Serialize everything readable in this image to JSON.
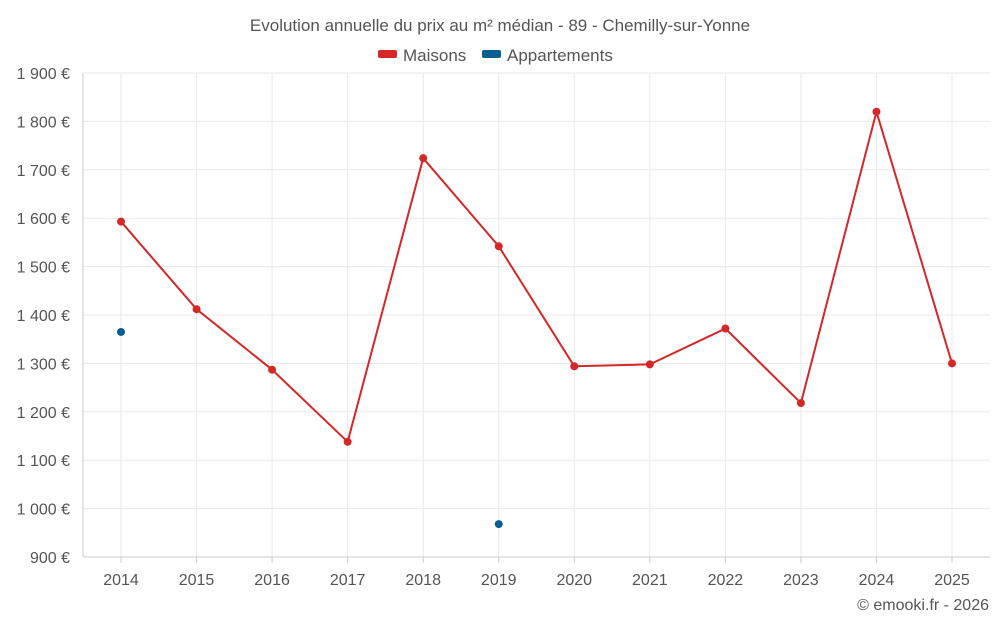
{
  "chart_data": {
    "type": "line",
    "title": "Evolution annuelle du prix au m² médian - 89 - Chemilly-sur-Yonne",
    "categories": [
      "2014",
      "2015",
      "2016",
      "2017",
      "2018",
      "2019",
      "2020",
      "2021",
      "2022",
      "2023",
      "2024",
      "2025"
    ],
    "ylim": [
      900,
      1900
    ],
    "yticks": [
      900,
      1000,
      1100,
      1200,
      1300,
      1400,
      1500,
      1600,
      1700,
      1800,
      1900
    ],
    "yticks_labels": [
      "900 €",
      "1 000 €",
      "1 100 €",
      "1 200 €",
      "1 300 €",
      "1 400 €",
      "1 500 €",
      "1 600 €",
      "1 700 €",
      "1 800 €",
      "1 900 €"
    ],
    "grid": true,
    "legend_position": "top-center",
    "series": [
      {
        "name": "Maisons",
        "color": "#d62728",
        "values": [
          1593,
          1412,
          1287,
          1138,
          1724,
          1542,
          1294,
          1298,
          1372,
          1218,
          1820,
          1300
        ]
      },
      {
        "name": "Appartements",
        "color": "#065f93",
        "values": [
          1365,
          null,
          null,
          null,
          null,
          968,
          null,
          null,
          null,
          null,
          null,
          null
        ]
      }
    ]
  },
  "credit": "© emooki.fr - 2026"
}
